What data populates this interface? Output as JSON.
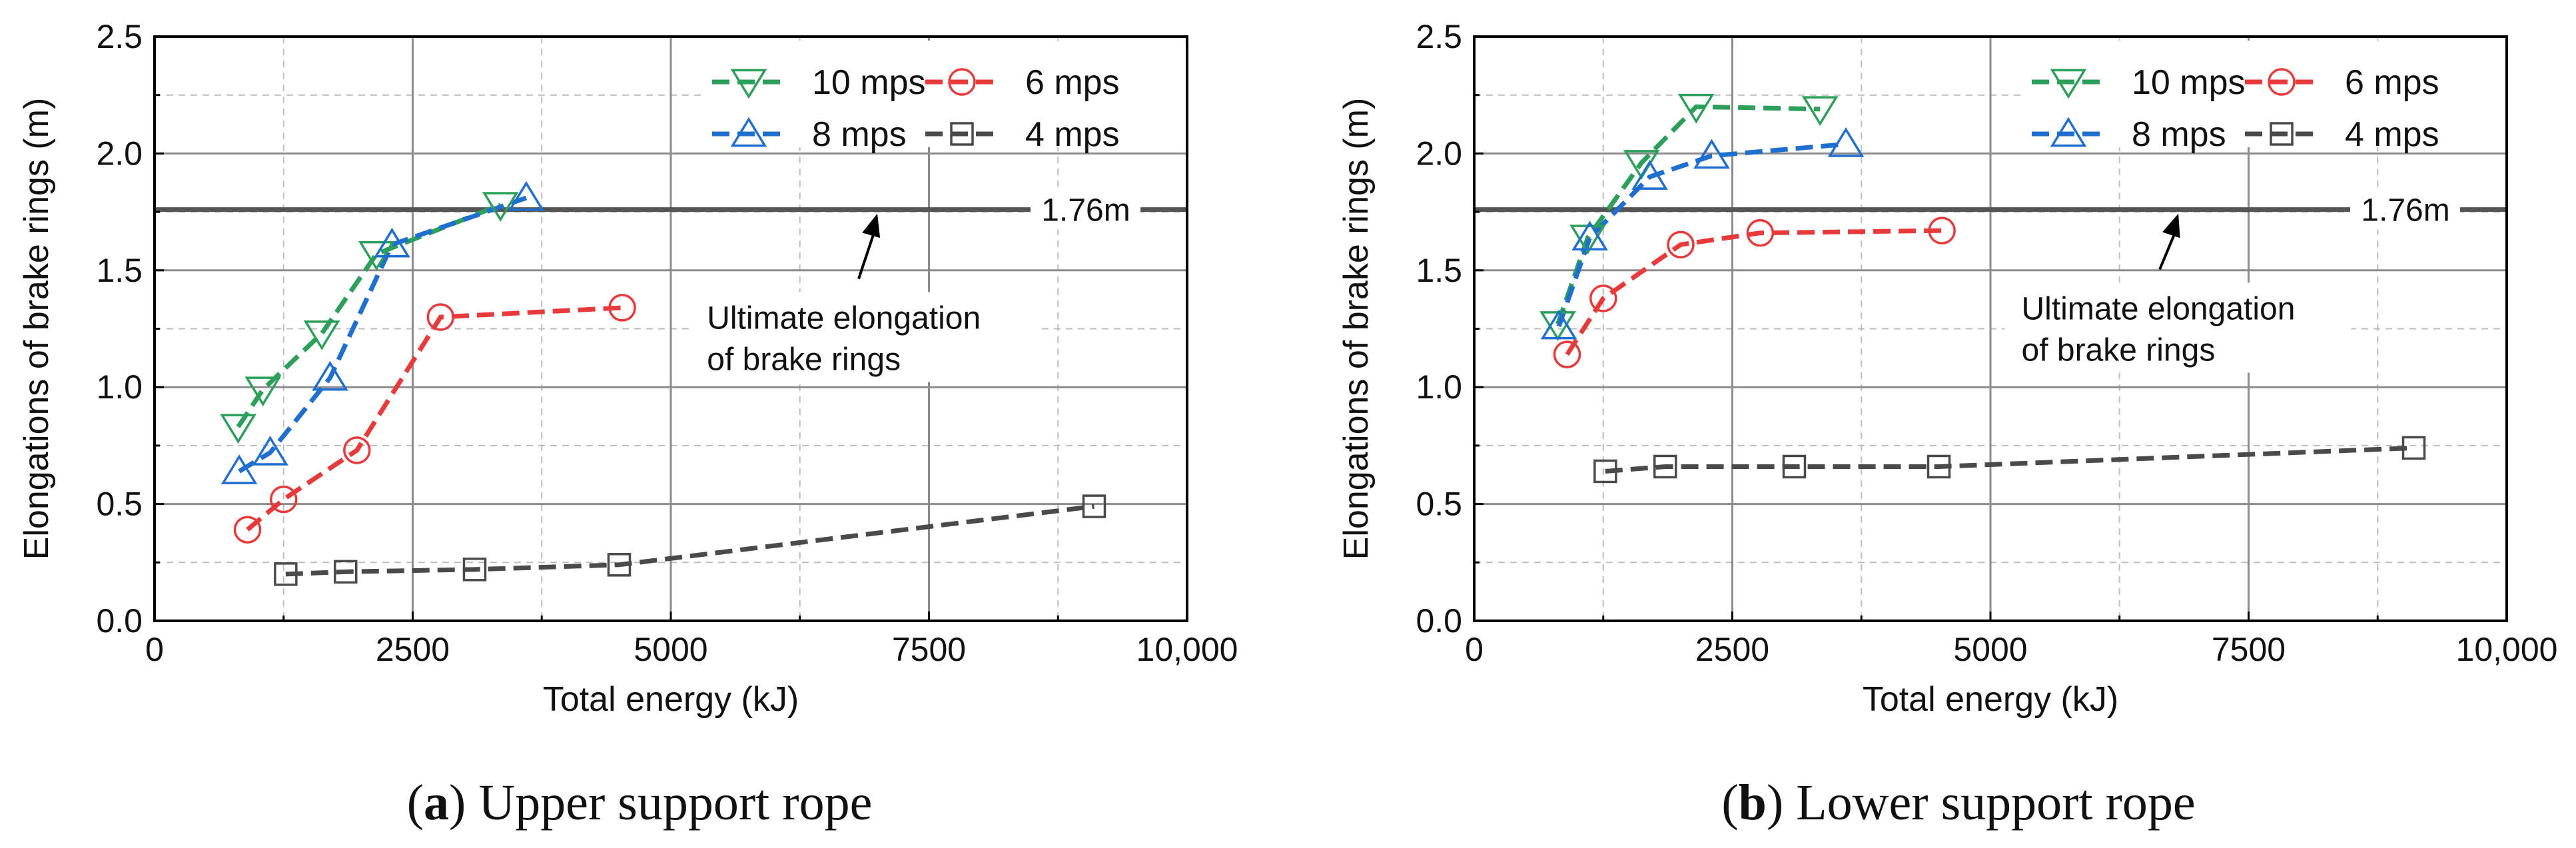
{
  "chart_data": [
    {
      "type": "line",
      "panel_label": "a",
      "caption": "Upper support rope",
      "xlabel": "Total energy (kJ)",
      "ylabel": "Elongations of brake rings (m)",
      "xlim": [
        0,
        10000
      ],
      "ylim": [
        0,
        2.5
      ],
      "xticks": [
        0,
        2500,
        5000,
        7500,
        10000
      ],
      "xtick_labels": [
        "0",
        "2500",
        "5000",
        "7500",
        "10,000"
      ],
      "yticks": [
        0.0,
        0.5,
        1.0,
        1.5,
        2.0,
        2.5
      ],
      "ytick_labels": [
        "0.0",
        "0.5",
        "1.0",
        "1.5",
        "2.0",
        "2.5"
      ],
      "reference_line": {
        "y": 1.76,
        "label": "1.76m"
      },
      "annotation": {
        "lines": [
          "Ultimate elongation",
          "of brake rings"
        ],
        "arrow_to": [
          7000,
          1.76
        ],
        "text_at": [
          5350,
          1.25
        ]
      },
      "series": [
        {
          "name": "10 mps",
          "color": "#2ca05a",
          "marker": "triangle-down",
          "x": [
            810,
            1050,
            1620,
            2150,
            3350
          ],
          "y": [
            0.83,
            0.99,
            1.23,
            1.57,
            1.78
          ]
        },
        {
          "name": "8 mps",
          "color": "#1f6fd1",
          "marker": "triangle-up",
          "x": [
            820,
            1120,
            1700,
            2300,
            3600
          ],
          "y": [
            0.64,
            0.72,
            1.04,
            1.61,
            1.81
          ]
        },
        {
          "name": "6 mps",
          "color": "#e83a3a",
          "marker": "circle",
          "x": [
            900,
            1250,
            1960,
            2770,
            4530
          ],
          "y": [
            0.39,
            0.52,
            0.73,
            1.3,
            1.34
          ]
        },
        {
          "name": "4 mps",
          "color": "#4a4a4a",
          "marker": "square",
          "x": [
            1270,
            1850,
            3100,
            4500,
            9100
          ],
          "y": [
            0.2,
            0.21,
            0.22,
            0.24,
            0.49
          ]
        }
      ]
    },
    {
      "type": "line",
      "panel_label": "b",
      "caption": "Lower support rope",
      "xlabel": "Total energy (kJ)",
      "ylabel": "Elongations of brake rings (m)",
      "xlim": [
        0,
        10000
      ],
      "ylim": [
        0,
        2.5
      ],
      "xticks": [
        0,
        2500,
        5000,
        7500,
        10000
      ],
      "xtick_labels": [
        "0",
        "2500",
        "5000",
        "7500",
        "10,000"
      ],
      "yticks": [
        0.0,
        0.5,
        1.0,
        1.5,
        2.0,
        2.5
      ],
      "ytick_labels": [
        "0.0",
        "0.5",
        "1.0",
        "1.5",
        "2.0",
        "2.5"
      ],
      "reference_line": {
        "y": 1.76,
        "label": "1.76m"
      },
      "annotation": {
        "lines": [
          "Ultimate elongation",
          "of brake rings"
        ],
        "arrow_to": [
          6820,
          1.76
        ],
        "text_at": [
          5300,
          1.29
        ]
      },
      "series": [
        {
          "name": "10 mps",
          "color": "#2ca05a",
          "marker": "triangle-down",
          "x": [
            810,
            1100,
            1620,
            2150,
            3350
          ],
          "y": [
            1.27,
            1.64,
            1.96,
            2.2,
            2.19
          ]
        },
        {
          "name": "8 mps",
          "color": "#1f6fd1",
          "marker": "triangle-up",
          "x": [
            820,
            1120,
            1700,
            2300,
            3600
          ],
          "y": [
            1.26,
            1.64,
            1.9,
            1.99,
            2.04
          ]
        },
        {
          "name": "6 mps",
          "color": "#e83a3a",
          "marker": "circle",
          "x": [
            900,
            1250,
            2000,
            2770,
            4530
          ],
          "y": [
            1.14,
            1.38,
            1.61,
            1.66,
            1.67
          ]
        },
        {
          "name": "4 mps",
          "color": "#4a4a4a",
          "marker": "square",
          "x": [
            1270,
            1850,
            3100,
            4500,
            9100
          ],
          "y": [
            0.64,
            0.66,
            0.66,
            0.66,
            0.74
          ]
        }
      ]
    }
  ]
}
